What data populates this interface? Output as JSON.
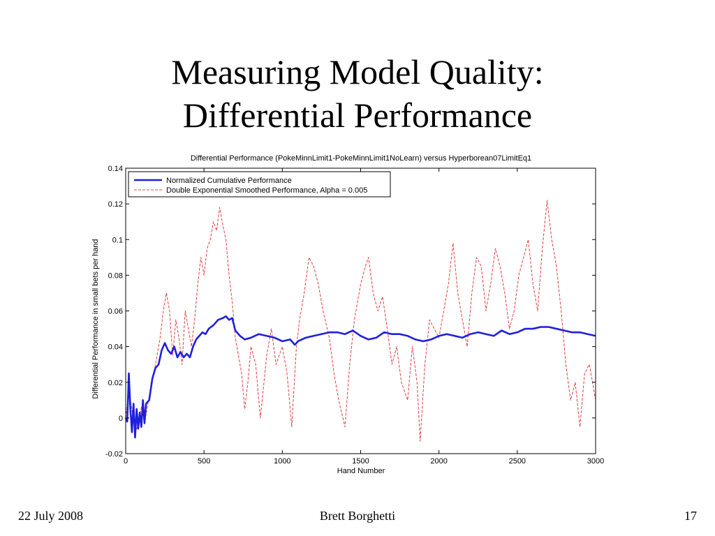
{
  "slide": {
    "title_line1": "Measuring Model Quality:",
    "title_line2": "Differential Performance",
    "footer_date": "22 July 2008",
    "footer_author": "Brett Borghetti",
    "footer_page": "17"
  },
  "chart_data": {
    "type": "line",
    "title": "Differential Performance (PokeMinnLimit1-PokeMinnLimit1NoLearn) versus Hyperborean07LimitEq1",
    "xlabel": "Hand Number",
    "ylabel": "Differential Performance in small bets per hand",
    "xlim": [
      0,
      3000
    ],
    "ylim": [
      -0.02,
      0.14
    ],
    "xticks": [
      0,
      500,
      1000,
      1500,
      2000,
      2500,
      3000
    ],
    "yticks": [
      -0.02,
      0,
      0.02,
      0.04,
      0.06,
      0.08,
      0.1,
      0.12,
      0.14
    ],
    "xtick_labels": [
      "0",
      "500",
      "1000",
      "1500",
      "2000",
      "2500",
      "3000"
    ],
    "ytick_labels": [
      "-0.02",
      "0",
      "0.02",
      "0.04",
      "0.06",
      "0.08",
      "0.1",
      "0.12",
      "0.14"
    ],
    "grid": false,
    "legend_position": "top-left",
    "series": [
      {
        "name": "Normalized Cumulative Performance",
        "color": "#1f1fdc",
        "style": "solid",
        "x": [
          0,
          10,
          20,
          30,
          40,
          50,
          60,
          70,
          80,
          90,
          100,
          110,
          120,
          130,
          150,
          170,
          190,
          210,
          230,
          250,
          270,
          290,
          310,
          330,
          350,
          370,
          390,
          410,
          430,
          450,
          470,
          490,
          510,
          530,
          560,
          590,
          620,
          640,
          660,
          680,
          700,
          730,
          760,
          800,
          850,
          900,
          950,
          1000,
          1050,
          1080,
          1100,
          1150,
          1200,
          1250,
          1300,
          1350,
          1400,
          1450,
          1500,
          1550,
          1600,
          1650,
          1700,
          1750,
          1800,
          1850,
          1900,
          1950,
          2000,
          2050,
          2100,
          2150,
          2200,
          2250,
          2300,
          2350,
          2400,
          2450,
          2500,
          2550,
          2600,
          2650,
          2700,
          2750,
          2800,
          2850,
          2900,
          2950,
          3000
        ],
        "y": [
          0.0,
          -0.002,
          0.025,
          0.005,
          -0.008,
          0.008,
          -0.011,
          0.005,
          -0.006,
          0.003,
          -0.005,
          0.01,
          -0.003,
          0.008,
          0.01,
          0.022,
          0.028,
          0.03,
          0.038,
          0.042,
          0.038,
          0.036,
          0.04,
          0.034,
          0.037,
          0.034,
          0.036,
          0.034,
          0.04,
          0.044,
          0.046,
          0.048,
          0.047,
          0.05,
          0.052,
          0.055,
          0.056,
          0.057,
          0.055,
          0.056,
          0.049,
          0.046,
          0.044,
          0.045,
          0.047,
          0.046,
          0.045,
          0.043,
          0.044,
          0.041,
          0.043,
          0.045,
          0.046,
          0.047,
          0.048,
          0.048,
          0.047,
          0.049,
          0.046,
          0.044,
          0.045,
          0.048,
          0.047,
          0.047,
          0.046,
          0.044,
          0.043,
          0.044,
          0.046,
          0.047,
          0.046,
          0.045,
          0.047,
          0.048,
          0.047,
          0.046,
          0.049,
          0.047,
          0.048,
          0.05,
          0.05,
          0.051,
          0.051,
          0.05,
          0.049,
          0.048,
          0.048,
          0.047,
          0.046
        ]
      },
      {
        "name": "Double Exponential Smoothed Performance, Alpha = 0.005",
        "color": "#e04040",
        "style": "dashed",
        "x": [
          0,
          20,
          40,
          60,
          80,
          100,
          120,
          150,
          180,
          200,
          220,
          240,
          260,
          280,
          300,
          320,
          340,
          360,
          380,
          400,
          420,
          440,
          460,
          480,
          500,
          520,
          540,
          560,
          580,
          600,
          620,
          640,
          660,
          680,
          700,
          720,
          740,
          760,
          780,
          800,
          830,
          860,
          900,
          930,
          960,
          1000,
          1030,
          1060,
          1090,
          1110,
          1140,
          1170,
          1200,
          1230,
          1260,
          1300,
          1330,
          1360,
          1400,
          1430,
          1460,
          1500,
          1530,
          1550,
          1580,
          1610,
          1640,
          1670,
          1700,
          1730,
          1760,
          1800,
          1830,
          1860,
          1880,
          1910,
          1940,
          1970,
          2000,
          2030,
          2060,
          2090,
          2120,
          2150,
          2180,
          2210,
          2240,
          2270,
          2300,
          2330,
          2360,
          2390,
          2420,
          2450,
          2480,
          2510,
          2540,
          2570,
          2600,
          2630,
          2660,
          2690,
          2720,
          2750,
          2780,
          2810,
          2840,
          2870,
          2900,
          2930,
          2960,
          3000
        ],
        "y": [
          0.0,
          0.015,
          0.005,
          -0.008,
          -0.004,
          0.006,
          -0.003,
          0.012,
          0.025,
          0.035,
          0.045,
          0.06,
          0.07,
          0.06,
          0.035,
          0.055,
          0.045,
          0.03,
          0.06,
          0.05,
          0.04,
          0.055,
          0.075,
          0.09,
          0.08,
          0.095,
          0.1,
          0.11,
          0.105,
          0.118,
          0.108,
          0.1,
          0.08,
          0.065,
          0.045,
          0.035,
          0.025,
          0.005,
          0.02,
          0.04,
          0.03,
          0.0,
          0.035,
          0.05,
          0.03,
          0.04,
          0.025,
          -0.005,
          0.04,
          0.055,
          0.07,
          0.09,
          0.085,
          0.075,
          0.06,
          0.045,
          0.025,
          0.01,
          -0.005,
          0.03,
          0.055,
          0.075,
          0.085,
          0.09,
          0.07,
          0.06,
          0.068,
          0.05,
          0.03,
          0.04,
          0.02,
          0.01,
          0.04,
          0.02,
          -0.013,
          0.03,
          0.055,
          0.05,
          0.045,
          0.06,
          0.075,
          0.098,
          0.07,
          0.055,
          0.04,
          0.07,
          0.09,
          0.085,
          0.06,
          0.075,
          0.095,
          0.085,
          0.07,
          0.05,
          0.06,
          0.08,
          0.09,
          0.1,
          0.075,
          0.06,
          0.095,
          0.122,
          0.1,
          0.085,
          0.06,
          0.03,
          0.01,
          0.02,
          -0.005,
          0.025,
          0.03,
          0.01
        ]
      }
    ]
  }
}
